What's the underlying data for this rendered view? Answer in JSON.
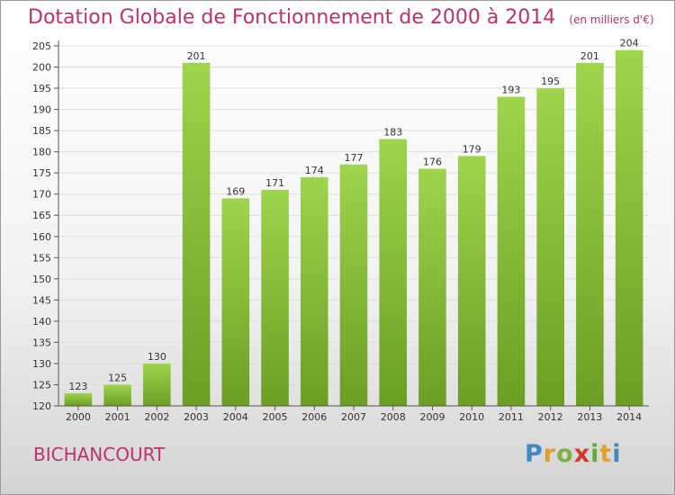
{
  "header": {
    "title": "Dotation Globale de Fonctionnement de 2000 à 2014",
    "subtitle": "(en milliers d'€)"
  },
  "footer": {
    "town": "BICHANCOURT",
    "logo_text": "Proxiti"
  },
  "chart_data": {
    "type": "bar",
    "title": "Dotation Globale de Fonctionnement de 2000 à 2014",
    "subtitle": "(en milliers d'€)",
    "categories": [
      "2000",
      "2001",
      "2002",
      "2003",
      "2004",
      "2005",
      "2006",
      "2007",
      "2008",
      "2009",
      "2010",
      "2011",
      "2012",
      "2013",
      "2014"
    ],
    "values": [
      123,
      125,
      130,
      201,
      169,
      171,
      174,
      177,
      183,
      176,
      179,
      193,
      195,
      201,
      204
    ],
    "ylim": [
      120,
      205
    ],
    "yticks": [
      120,
      125,
      130,
      135,
      140,
      145,
      150,
      155,
      160,
      165,
      170,
      175,
      180,
      185,
      190,
      195,
      200,
      205
    ],
    "grid": true,
    "colors": {
      "bar_light": "#9fd44d",
      "bar_dark": "#6b9e23",
      "title": "#c0306a",
      "grid": "#dedede"
    }
  }
}
